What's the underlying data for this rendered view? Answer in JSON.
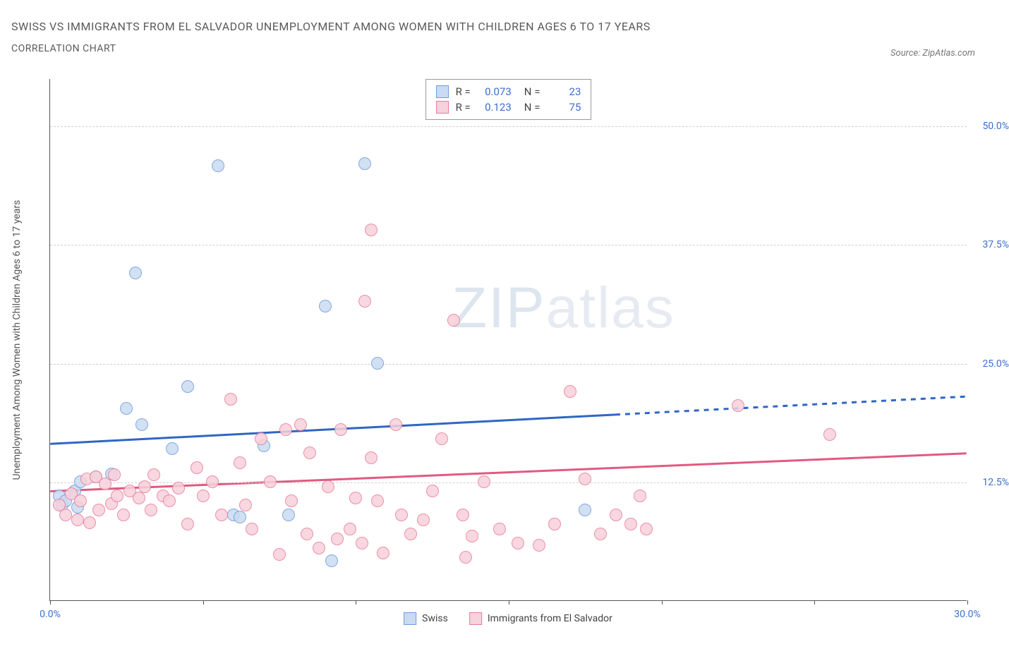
{
  "title": "SWISS VS IMMIGRANTS FROM EL SALVADOR UNEMPLOYMENT AMONG WOMEN WITH CHILDREN AGES 6 TO 17 YEARS",
  "subtitle": "CORRELATION CHART",
  "source_label": "Source: ZipAtlas.com",
  "y_axis_label": "Unemployment Among Women with Children Ages 6 to 17 years",
  "watermark_a": "ZIP",
  "watermark_b": "atlas",
  "xlim": [
    0,
    30
  ],
  "ylim": [
    0,
    55
  ],
  "x_ticks": [
    0,
    5,
    10,
    15,
    20,
    25,
    30
  ],
  "x_tick_labels": {
    "0": "0.0%",
    "30": "30.0%"
  },
  "y_gridlines": [
    12.5,
    25.0,
    37.5,
    50.0
  ],
  "y_tick_labels": [
    "12.5%",
    "25.0%",
    "37.5%",
    "50.0%"
  ],
  "series": [
    {
      "name": "Swiss",
      "fill": "#c9dbf2",
      "stroke": "#6f9bd8",
      "line_color": "#2f66c4",
      "R": "0.073",
      "N": "23",
      "trend": {
        "x1": 0,
        "y1": 16.5,
        "x2": 30,
        "y2": 21.5,
        "solid_until_x": 18.5
      },
      "points": [
        [
          0.3,
          11.0
        ],
        [
          0.4,
          10.0
        ],
        [
          0.5,
          10.5
        ],
        [
          0.8,
          11.5
        ],
        [
          0.9,
          9.8
        ],
        [
          1.0,
          12.5
        ],
        [
          1.5,
          13.0
        ],
        [
          2.0,
          13.3
        ],
        [
          2.5,
          20.2
        ],
        [
          2.8,
          34.5
        ],
        [
          3.0,
          18.5
        ],
        [
          4.0,
          16.0
        ],
        [
          4.5,
          22.5
        ],
        [
          5.5,
          45.8
        ],
        [
          6.0,
          9.0
        ],
        [
          6.2,
          8.8
        ],
        [
          7.0,
          16.3
        ],
        [
          7.8,
          9.0
        ],
        [
          9.0,
          31.0
        ],
        [
          9.2,
          4.2
        ],
        [
          10.3,
          46.0
        ],
        [
          10.7,
          25.0
        ],
        [
          17.5,
          9.5
        ]
      ]
    },
    {
      "name": "Immigrants from El Salvador",
      "fill": "#f7d1db",
      "stroke": "#e87b9a",
      "line_color": "#e15a82",
      "R": "0.123",
      "N": "75",
      "trend": {
        "x1": 0,
        "y1": 11.5,
        "x2": 30,
        "y2": 15.5,
        "solid_until_x": 30
      },
      "points": [
        [
          0.3,
          10.0
        ],
        [
          0.5,
          9.0
        ],
        [
          0.7,
          11.2
        ],
        [
          0.9,
          8.5
        ],
        [
          1.0,
          10.5
        ],
        [
          1.2,
          12.8
        ],
        [
          1.3,
          8.2
        ],
        [
          1.5,
          13.0
        ],
        [
          1.6,
          9.5
        ],
        [
          1.8,
          12.3
        ],
        [
          2.0,
          10.2
        ],
        [
          2.1,
          13.2
        ],
        [
          2.2,
          11.0
        ],
        [
          2.4,
          9.0
        ],
        [
          2.6,
          11.5
        ],
        [
          2.9,
          10.8
        ],
        [
          3.1,
          12.0
        ],
        [
          3.3,
          9.5
        ],
        [
          3.4,
          13.2
        ],
        [
          3.7,
          11.0
        ],
        [
          3.9,
          10.5
        ],
        [
          4.2,
          11.8
        ],
        [
          4.5,
          8.0
        ],
        [
          4.8,
          14.0
        ],
        [
          5.0,
          11.0
        ],
        [
          5.3,
          12.5
        ],
        [
          5.6,
          9.0
        ],
        [
          5.9,
          21.2
        ],
        [
          6.2,
          14.5
        ],
        [
          6.4,
          10.0
        ],
        [
          6.6,
          7.5
        ],
        [
          6.9,
          17.0
        ],
        [
          7.2,
          12.5
        ],
        [
          7.5,
          4.8
        ],
        [
          7.7,
          18.0
        ],
        [
          7.9,
          10.5
        ],
        [
          8.2,
          18.5
        ],
        [
          8.4,
          7.0
        ],
        [
          8.5,
          15.5
        ],
        [
          8.8,
          5.5
        ],
        [
          9.1,
          12.0
        ],
        [
          9.4,
          6.5
        ],
        [
          9.5,
          18.0
        ],
        [
          9.8,
          7.5
        ],
        [
          10.0,
          10.8
        ],
        [
          10.2,
          6.0
        ],
        [
          10.3,
          31.5
        ],
        [
          10.5,
          15.0
        ],
        [
          10.5,
          39.0
        ],
        [
          10.7,
          10.5
        ],
        [
          10.9,
          5.0
        ],
        [
          11.3,
          18.5
        ],
        [
          11.5,
          9.0
        ],
        [
          11.8,
          7.0
        ],
        [
          12.2,
          8.5
        ],
        [
          12.5,
          11.5
        ],
        [
          12.8,
          17.0
        ],
        [
          13.2,
          29.5
        ],
        [
          13.5,
          9.0
        ],
        [
          13.6,
          4.5
        ],
        [
          13.8,
          6.8
        ],
        [
          14.2,
          12.5
        ],
        [
          14.7,
          7.5
        ],
        [
          15.3,
          6.0
        ],
        [
          16.0,
          5.8
        ],
        [
          16.5,
          8.0
        ],
        [
          17.0,
          22.0
        ],
        [
          17.5,
          12.8
        ],
        [
          18.0,
          7.0
        ],
        [
          18.5,
          9.0
        ],
        [
          19.0,
          8.0
        ],
        [
          19.3,
          11.0
        ],
        [
          19.5,
          7.5
        ],
        [
          22.5,
          20.5
        ],
        [
          25.5,
          17.5
        ]
      ]
    }
  ],
  "legend_bottom": [
    {
      "label": "Swiss",
      "fill": "#c9dbf2",
      "stroke": "#6f9bd8"
    },
    {
      "label": "Immigrants from El Salvador",
      "fill": "#f7d1db",
      "stroke": "#e87b9a"
    }
  ],
  "stats_legend_labels": {
    "R": "R =",
    "N": "N ="
  }
}
